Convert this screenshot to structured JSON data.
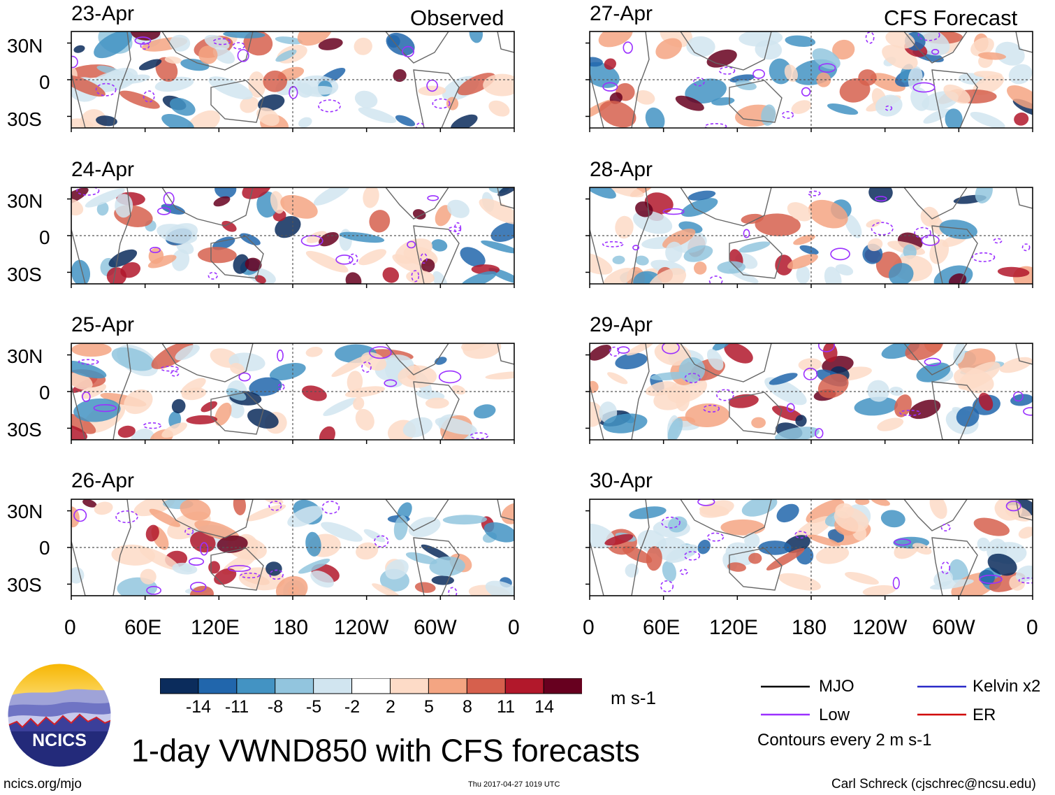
{
  "panels": {
    "observed_header": "Observed",
    "forecast_header": "CFS Forecast",
    "left_dates": [
      "23-Apr",
      "24-Apr",
      "25-Apr",
      "26-Apr"
    ],
    "right_dates": [
      "27-Apr",
      "28-Apr",
      "29-Apr",
      "30-Apr"
    ],
    "lat_labels": [
      "30N",
      "0",
      "30S"
    ],
    "lon_labels": [
      "0",
      "60E",
      "120E",
      "180",
      "120W",
      "60W",
      "0"
    ]
  },
  "colorbar": {
    "labels": [
      "-14",
      "-11",
      "-8",
      "-5",
      "-2",
      "2",
      "5",
      "8",
      "11",
      "14"
    ],
    "colors": [
      "#0b2c5c",
      "#2166ac",
      "#4393c3",
      "#92c5de",
      "#d1e5f0",
      "#ffffff",
      "#fddbc7",
      "#f4a582",
      "#d6604d",
      "#b2182b",
      "#67001f"
    ],
    "units": "m s-1"
  },
  "legend": {
    "items": [
      {
        "label": "MJO",
        "color": "#000000"
      },
      {
        "label": "Kelvin x2",
        "color": "#2a2ac8"
      },
      {
        "label": "Low",
        "color": "#9b30ff"
      },
      {
        "label": "ER",
        "color": "#d00000"
      }
    ],
    "contours_note": "Contours every 2 m s-1"
  },
  "logo": {
    "text": "NCICS"
  },
  "title": "1-day VWND850 with CFS forecasts",
  "footer": {
    "url": "ncics.org/mjo",
    "timestamp": "Thu 2017-04-27 1019 UTC",
    "credit": "Carl Schreck (cjschrec@ncsu.edu)"
  }
}
